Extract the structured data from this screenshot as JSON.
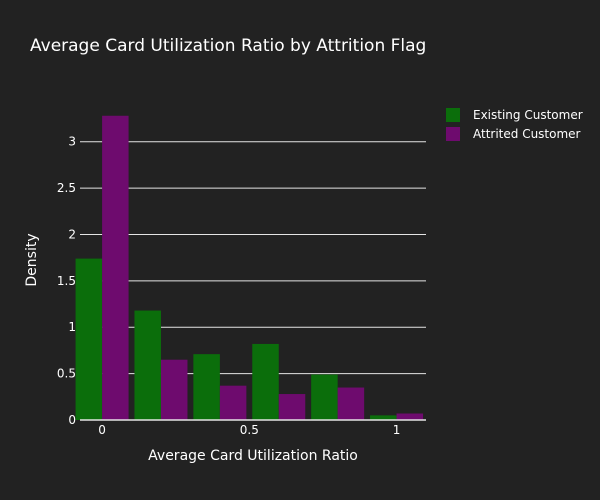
{
  "chart_data": {
    "type": "bar",
    "title": "Average Card Utilization Ratio by Attrition Flag",
    "xlabel": "Average Card Utilization Ratio",
    "ylabel": "Density",
    "xlim": [
      -0.075,
      1.1
    ],
    "ylim": [
      0,
      3.45
    ],
    "bin_width": 0.2,
    "bin_centers": [
      0.0,
      0.2,
      0.4,
      0.6,
      0.8,
      1.0
    ],
    "x_ticks": [
      0,
      0.5,
      1
    ],
    "x_tick_labels": [
      "0",
      "0.5",
      "1"
    ],
    "y_ticks": [
      0,
      0.5,
      1,
      1.5,
      2,
      2.5,
      3
    ],
    "y_tick_labels": [
      "0",
      "0.5",
      "1",
      "1.5",
      "2",
      "2.5",
      "3"
    ],
    "grid": true,
    "legend_position": "top-right",
    "series": [
      {
        "name": "Existing Customer",
        "color": "#0b6e0b",
        "values": [
          1.74,
          1.18,
          0.71,
          0.82,
          0.49,
          0.05
        ]
      },
      {
        "name": "Attrited Customer",
        "color": "#6e0b6e",
        "values": [
          3.28,
          0.65,
          0.37,
          0.28,
          0.35,
          0.07
        ]
      }
    ]
  },
  "style": {
    "background": "#222222",
    "grid_color": "#e5e5e5",
    "text_color": "#ffffff"
  }
}
